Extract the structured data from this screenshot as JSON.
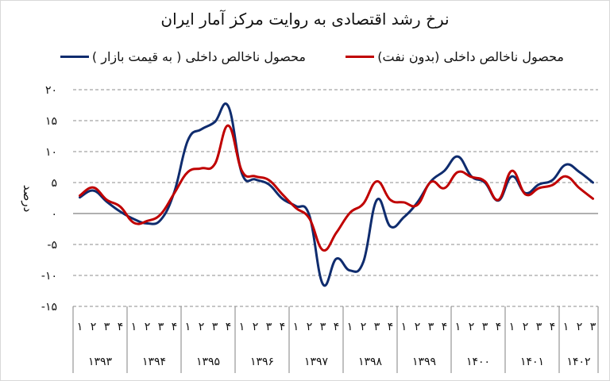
{
  "chart_data": {
    "type": "line",
    "title": "نرخ رشد اقتصادی به روایت مرکز آمار ایران",
    "xlabel": "",
    "ylabel": "درصد",
    "ylim": [
      -15,
      20
    ],
    "yticks": [
      20,
      15,
      10,
      5,
      0,
      -5,
      -10,
      -15
    ],
    "ytick_labels": [
      "۲۰",
      "۱۵",
      "۱۰",
      "۵",
      "۰",
      "-۵",
      "-۱۰",
      "-۱۵"
    ],
    "grid": true,
    "legend_position": "top",
    "years": [
      "۱۳۹۳",
      "۱۳۹۴",
      "۱۳۹۵",
      "۱۳۹۶",
      "۱۳۹۷",
      "۱۳۹۸",
      "۱۳۹۹",
      "۱۴۰۰",
      "۱۴۰۱",
      "۱۴۰۲"
    ],
    "quarters_per_year": [
      4,
      4,
      4,
      4,
      4,
      4,
      4,
      4,
      4,
      3
    ],
    "quarter_labels": [
      "۱",
      "۲",
      "۳",
      "۴"
    ],
    "categories": [
      "1393-Q1",
      "1393-Q2",
      "1393-Q3",
      "1393-Q4",
      "1394-Q1",
      "1394-Q2",
      "1394-Q3",
      "1394-Q4",
      "1395-Q1",
      "1395-Q2",
      "1395-Q3",
      "1395-Q4",
      "1396-Q1",
      "1396-Q2",
      "1396-Q3",
      "1396-Q4",
      "1397-Q1",
      "1397-Q2",
      "1397-Q3",
      "1397-Q4",
      "1398-Q1",
      "1398-Q2",
      "1398-Q3",
      "1398-Q4",
      "1399-Q1",
      "1399-Q2",
      "1399-Q3",
      "1399-Q4",
      "1400-Q1",
      "1400-Q2",
      "1400-Q3",
      "1400-Q4",
      "1401-Q1",
      "1401-Q2",
      "1401-Q3",
      "1401-Q4",
      "1402-Q1",
      "1402-Q2",
      "1402-Q3"
    ],
    "series": [
      {
        "name": "محصول ناخالص داخلی ( به قیمت بازار )",
        "color": "#0f2c6e",
        "values": [
          2.6,
          3.7,
          1.9,
          0.3,
          -0.9,
          -1.6,
          -1.0,
          3.5,
          11.8,
          13.6,
          14.8,
          17.3,
          6.5,
          5.5,
          4.7,
          2.4,
          1.2,
          -0.3,
          -11.4,
          -7.3,
          -9.2,
          -7.8,
          2.2,
          -2.1,
          -0.6,
          1.8,
          5.2,
          6.9,
          9.2,
          6.0,
          5.0,
          2.1,
          6.0,
          3.3,
          4.7,
          5.4,
          7.9,
          6.7,
          5.0
        ]
      },
      {
        "name": "محصول ناخالص داخلی (بدون نفت)",
        "color": "#c00000",
        "values": [
          2.9,
          4.2,
          2.2,
          1.1,
          -1.5,
          -1.2,
          -0.1,
          3.3,
          6.7,
          7.3,
          8.0,
          14.2,
          6.9,
          6.0,
          5.4,
          3.1,
          0.9,
          -0.8,
          -5.9,
          -3.1,
          0.1,
          1.6,
          5.2,
          2.2,
          1.8,
          1.4,
          5.1,
          4.1,
          6.7,
          5.9,
          5.2,
          2.2,
          6.9,
          3.1,
          4.1,
          4.6,
          6.0,
          4.1,
          2.4
        ]
      }
    ]
  }
}
